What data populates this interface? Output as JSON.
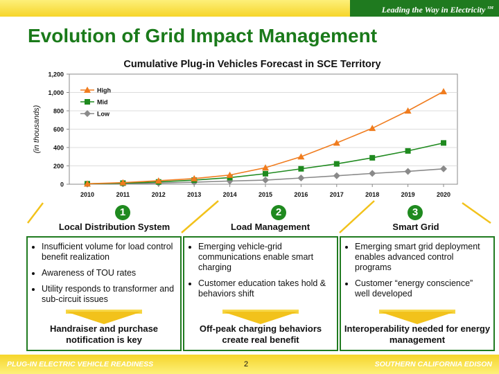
{
  "header": {
    "tagline": "Leading the Way in Electricity",
    "tagline_mark": "SM"
  },
  "title": "Evolution of Grid Impact Management",
  "chart_data": {
    "type": "line",
    "title": "Cumulative Plug-in Vehicles Forecast in SCE Territory",
    "ylabel": "(in thousands)",
    "xlabel": "",
    "ylim": [
      0,
      1200
    ],
    "yticks": [
      0,
      200,
      400,
      600,
      800,
      1000,
      1200
    ],
    "ytick_labels": [
      "0",
      "200",
      "400",
      "600",
      "800",
      "1,000",
      "1,200"
    ],
    "categories": [
      "2010",
      "2011",
      "2012",
      "2013",
      "2014",
      "2015",
      "2016",
      "2017",
      "2018",
      "2019",
      "2020"
    ],
    "legend_position": "top-left",
    "series": [
      {
        "name": "High",
        "color": "#f07c1e",
        "marker": "triangle",
        "values": [
          5,
          18,
          38,
          62,
          100,
          180,
          300,
          450,
          610,
          800,
          1010
        ]
      },
      {
        "name": "Mid",
        "color": "#1f8a1f",
        "marker": "square",
        "values": [
          5,
          12,
          25,
          45,
          72,
          115,
          168,
          222,
          288,
          363,
          450
        ]
      },
      {
        "name": "Low",
        "color": "#8a8a8a",
        "marker": "diamond",
        "values": [
          2,
          6,
          12,
          22,
          35,
          45,
          68,
          92,
          118,
          140,
          168
        ]
      }
    ]
  },
  "columns": [
    {
      "number": "1",
      "header": "Local Distribution System",
      "bullets": [
        "Insufficient volume for load control benefit realization",
        "Awareness of TOU rates",
        "Utility responds to transformer and sub-circuit issues"
      ],
      "outcome": "Handraiser and purchase notification is key"
    },
    {
      "number": "2",
      "header": "Load Management",
      "bullets": [
        "Emerging vehicle-grid communications enable smart charging",
        "Customer education takes hold & behaviors shift"
      ],
      "outcome": "Off-peak charging behaviors create real benefit"
    },
    {
      "number": "3",
      "header": "Smart Grid",
      "bullets": [
        "Emerging smart grid deployment enables advanced control programs",
        "Customer “energy conscience” well developed"
      ],
      "outcome": "Interoperability needed for energy management"
    }
  ],
  "footer": {
    "left": "PLUG-IN ELECTRIC VEHICLE READINESS",
    "page": "2",
    "right": "SOUTHERN CALIFORNIA EDISON"
  }
}
